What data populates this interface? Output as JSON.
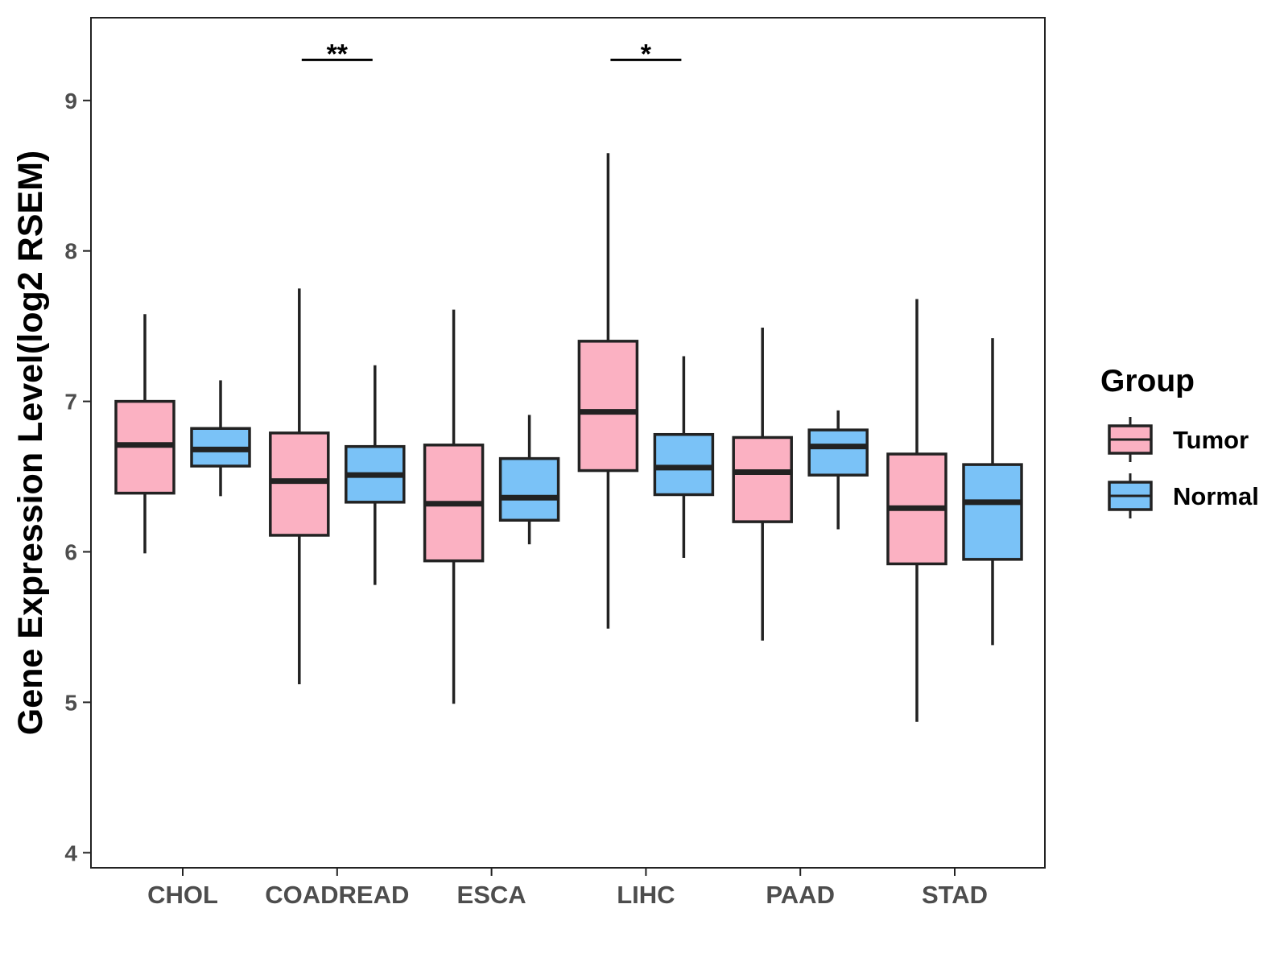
{
  "chart_data": {
    "type": "boxplot",
    "title": "",
    "xlabel": "",
    "ylabel": "Gene Expression Level(log2 RSEM)",
    "ylim": [
      3.9,
      9.55
    ],
    "yticks": [
      4,
      5,
      6,
      7,
      8,
      9
    ],
    "categories": [
      "CHOL",
      "COADREAD",
      "ESCA",
      "LIHC",
      "PAAD",
      "STAD"
    ],
    "legend": {
      "title": "Group",
      "position": "right",
      "entries": [
        {
          "name": "Tumor",
          "color": "#fbb1c2"
        },
        {
          "name": "Normal",
          "color": "#7ac2f7"
        }
      ]
    },
    "series": [
      {
        "name": "Tumor",
        "color": "#fbb1c2",
        "boxes": [
          {
            "category": "CHOL",
            "min": 5.99,
            "q1": 6.39,
            "median": 6.71,
            "q3": 7.0,
            "max": 7.58
          },
          {
            "category": "COADREAD",
            "min": 5.12,
            "q1": 6.11,
            "median": 6.47,
            "q3": 6.79,
            "max": 7.75
          },
          {
            "category": "ESCA",
            "min": 4.99,
            "q1": 5.94,
            "median": 6.32,
            "q3": 6.71,
            "max": 7.61
          },
          {
            "category": "LIHC",
            "min": 5.49,
            "q1": 6.54,
            "median": 6.93,
            "q3": 7.4,
            "max": 8.65
          },
          {
            "category": "PAAD",
            "min": 5.41,
            "q1": 6.2,
            "median": 6.53,
            "q3": 6.76,
            "max": 7.49
          },
          {
            "category": "STAD",
            "min": 4.87,
            "q1": 5.92,
            "median": 6.29,
            "q3": 6.65,
            "max": 7.68
          }
        ]
      },
      {
        "name": "Normal",
        "color": "#7ac2f7",
        "boxes": [
          {
            "category": "CHOL",
            "min": 6.37,
            "q1": 6.57,
            "median": 6.68,
            "q3": 6.82,
            "max": 7.14
          },
          {
            "category": "COADREAD",
            "min": 5.78,
            "q1": 6.33,
            "median": 6.51,
            "q3": 6.7,
            "max": 7.24
          },
          {
            "category": "ESCA",
            "min": 6.05,
            "q1": 6.21,
            "median": 6.36,
            "q3": 6.62,
            "max": 6.91
          },
          {
            "category": "LIHC",
            "min": 5.96,
            "q1": 6.38,
            "median": 6.56,
            "q3": 6.78,
            "max": 7.3
          },
          {
            "category": "PAAD",
            "min": 6.15,
            "q1": 6.51,
            "median": 6.7,
            "q3": 6.81,
            "max": 6.94
          },
          {
            "category": "STAD",
            "min": 5.38,
            "q1": 5.95,
            "median": 6.33,
            "q3": 6.58,
            "max": 7.42
          }
        ]
      }
    ],
    "significance": [
      {
        "category": "COADREAD",
        "label": "**",
        "y": 9.27
      },
      {
        "category": "LIHC",
        "label": "*",
        "y": 9.27
      }
    ]
  }
}
